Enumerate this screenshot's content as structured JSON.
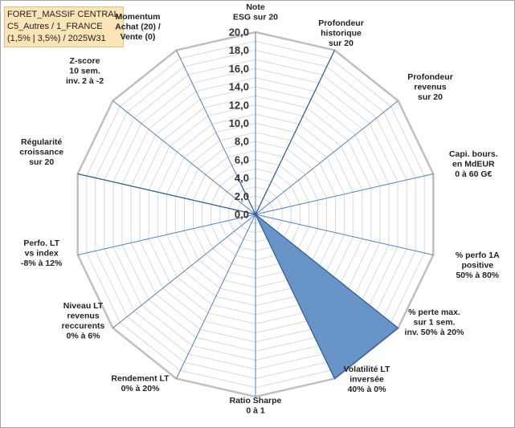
{
  "info": {
    "line1": "FORET_MASSIF CENTRAL",
    "line2": "C5_Autres / 1_FRANCE",
    "line3": "(1,5% | 3,5%) / 2025W31"
  },
  "chart_data": {
    "type": "radar",
    "rmax": 20,
    "ticks": [
      "0,0",
      "2,0",
      "4,0",
      "6,0",
      "8,0",
      "10,0",
      "12,0",
      "14,0",
      "16,0",
      "18,0",
      "20,0"
    ],
    "tick_values": [
      0,
      2,
      4,
      6,
      8,
      10,
      12,
      14,
      16,
      18,
      20
    ],
    "axes": [
      {
        "label": [
          "Note",
          "ESG sur 20"
        ],
        "value": 0
      },
      {
        "label": [
          "Profondeur",
          "historique",
          "sur 20"
        ],
        "value": 20
      },
      {
        "label": [
          "Profondeur",
          "revenus",
          "sur 20"
        ],
        "value": 0
      },
      {
        "label": [
          "Capi. bours.",
          "en MdEUR",
          "0 à 60 G€"
        ],
        "value": 0
      },
      {
        "label": [
          "% perfo 1A",
          "positive",
          "50% à 80%"
        ],
        "value": 0
      },
      {
        "label": [
          "% perte max.",
          "sur 1 sem.",
          "inv. 50% à 20%"
        ],
        "value": 20
      },
      {
        "label": [
          "Volatilité LT",
          "inversée",
          "40% à 0%"
        ],
        "value": 20
      },
      {
        "label": [
          "Ratio Sharpe",
          "0 à 1"
        ],
        "value": 0
      },
      {
        "label": [
          "Rendement LT",
          "0% à 20%"
        ],
        "value": 0
      },
      {
        "label": [
          "Niveau LT",
          "revenus",
          "reccurents",
          "0% à 6%"
        ],
        "value": 0
      },
      {
        "label": [
          "Perfo. LT",
          "vs index",
          "-8% à 12%"
        ],
        "value": 0
      },
      {
        "label": [
          "Régularité",
          "croissance",
          "sur 20"
        ],
        "value": 20
      },
      {
        "label": [
          "Z-score",
          "10 sem.",
          "inv. 2 à -2"
        ],
        "value": 0
      },
      {
        "label": [
          "Momentum",
          "Achat (20) /",
          "Vente (0)"
        ],
        "value": 4
      }
    ],
    "colors": {
      "fill": "#4f81bd",
      "stroke": "#2f5d94",
      "grid": "#d9d9d9",
      "spoke": "#4f81bd"
    }
  }
}
